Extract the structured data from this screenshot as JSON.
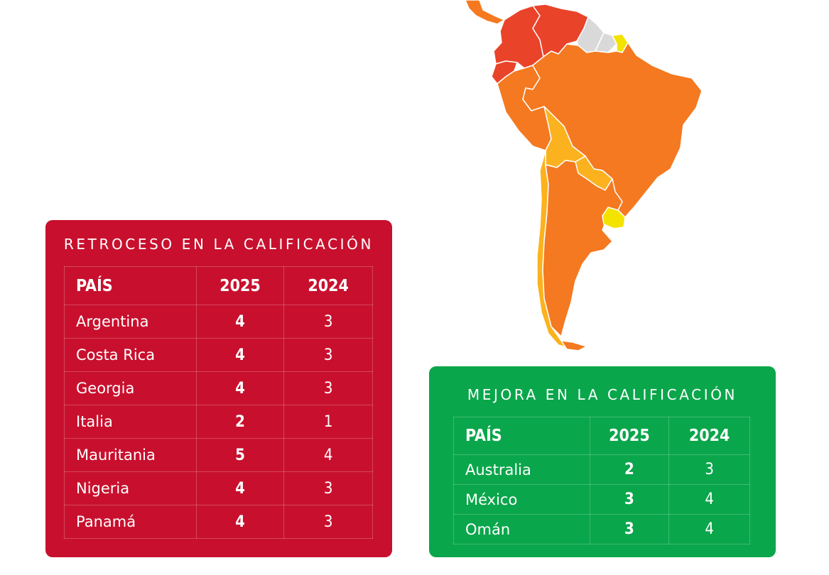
{
  "colors": {
    "red_panel": "#c8102e",
    "green_panel": "#0aa64b",
    "map_dark_red": "#e9432a",
    "map_orange": "#f47920",
    "map_amber": "#fbb21e",
    "map_yellow": "#f4e200",
    "map_grey": "#d9d9d9"
  },
  "downgrade": {
    "title": "RETROCESO EN LA CALIFICACIÓN",
    "headers": {
      "country": "PAÍS",
      "y2025": "2025",
      "y2024": "2024"
    },
    "rows": [
      {
        "country": "Argentina",
        "y2025": "4",
        "y2024": "3"
      },
      {
        "country": "Costa Rica",
        "y2025": "4",
        "y2024": "3"
      },
      {
        "country": "Georgia",
        "y2025": "4",
        "y2024": "3"
      },
      {
        "country": "Italia",
        "y2025": "2",
        "y2024": "1"
      },
      {
        "country": "Mauritania",
        "y2025": "5",
        "y2024": "4"
      },
      {
        "country": "Nigeria",
        "y2025": "4",
        "y2024": "3"
      },
      {
        "country": "Panamá",
        "y2025": "4",
        "y2024": "3"
      }
    ]
  },
  "upgrade": {
    "title": "MEJORA EN LA CALIFICACIÓN",
    "headers": {
      "country": "PAÍS",
      "y2025": "2025",
      "y2024": "2024"
    },
    "rows": [
      {
        "country": "Australia",
        "y2025": "2",
        "y2024": "3"
      },
      {
        "country": "México",
        "y2025": "3",
        "y2024": "4"
      },
      {
        "country": "Omán",
        "y2025": "3",
        "y2024": "4"
      }
    ]
  }
}
